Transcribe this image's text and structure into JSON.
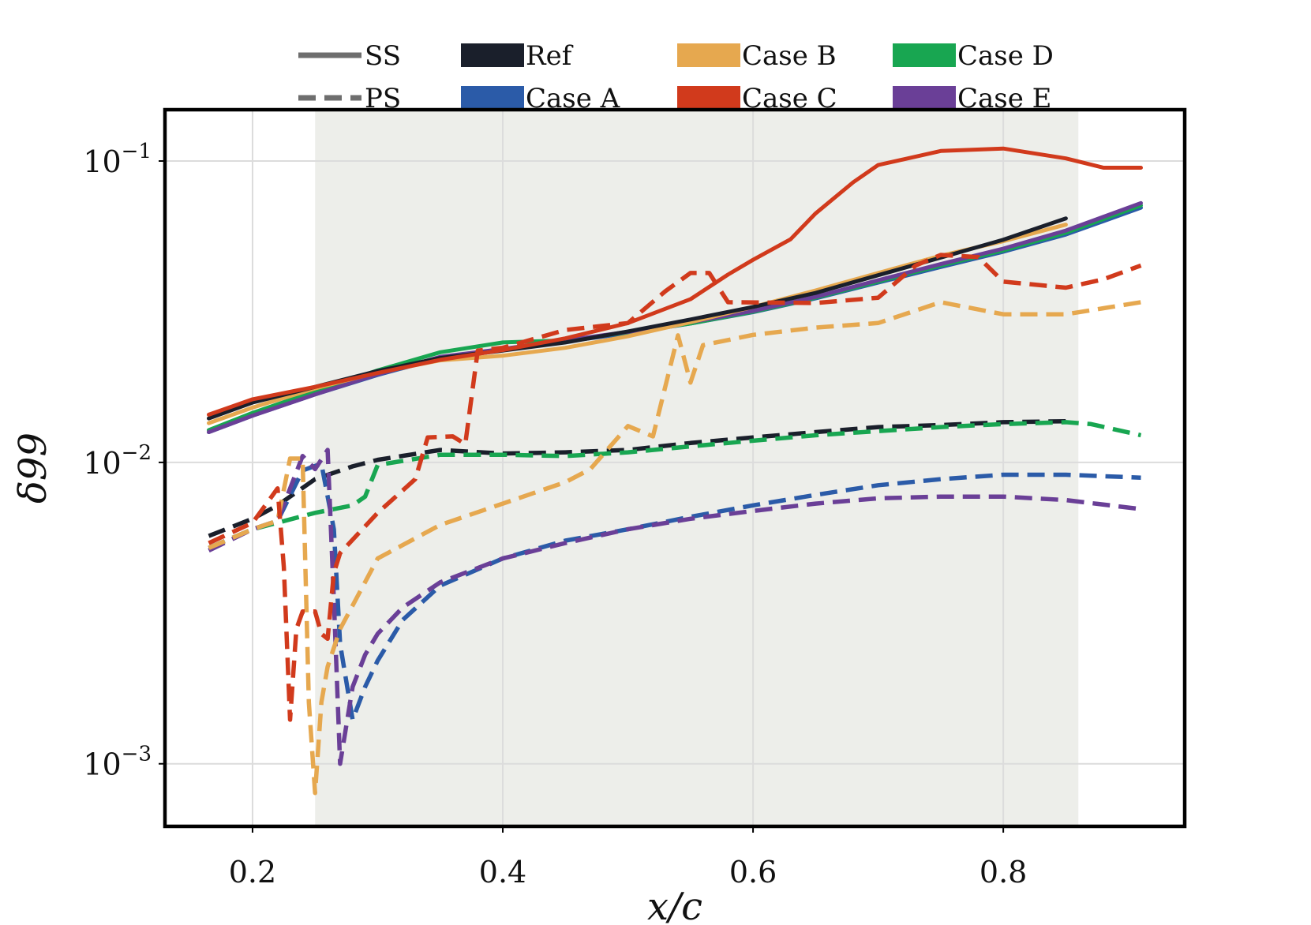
{
  "chart_data": {
    "type": "line",
    "xlabel": "x/c",
    "ylabel": "δ99",
    "yscale": "log",
    "xlim": [
      0.13,
      0.945
    ],
    "ylim": [
      0.00062,
      0.148
    ],
    "xticks": [
      0.2,
      0.4,
      0.6,
      0.8
    ],
    "xtick_labels": [
      "0.2",
      "0.4",
      "0.6",
      "0.8"
    ],
    "yticks": [
      0.001,
      0.01,
      0.1
    ],
    "ytick_labels": [
      {
        "base": "10",
        "exp": "−3"
      },
      {
        "base": "10",
        "exp": "−2"
      },
      {
        "base": "10",
        "exp": "−1"
      }
    ],
    "grid": true,
    "shaded_region": [
      0.25,
      0.86
    ],
    "legend_position": "top",
    "legend": {
      "styles": [
        {
          "label": "SS",
          "dash": "solid"
        },
        {
          "label": "PS",
          "dash": "dashed"
        }
      ],
      "cases": [
        {
          "label": "Ref",
          "color": "#1a1f2b"
        },
        {
          "label": "Case A",
          "color": "#2b5ba8"
        },
        {
          "label": "Case B",
          "color": "#e6a84f"
        },
        {
          "label": "Case C",
          "color": "#d13a1c"
        },
        {
          "label": "Case D",
          "color": "#18a651"
        },
        {
          "label": "Case E",
          "color": "#6a3f97"
        }
      ]
    },
    "series": [
      {
        "case": "Case A",
        "side": "SS",
        "x": [
          0.165,
          0.2,
          0.25,
          0.3,
          0.35,
          0.4,
          0.45,
          0.5,
          0.55,
          0.6,
          0.65,
          0.7,
          0.75,
          0.8,
          0.85,
          0.91
        ],
        "y": [
          0.0126,
          0.0143,
          0.0168,
          0.0195,
          0.0222,
          0.0238,
          0.0252,
          0.0268,
          0.0289,
          0.0315,
          0.035,
          0.0395,
          0.0445,
          0.05,
          0.057,
          0.07
        ]
      },
      {
        "case": "Case D",
        "side": "SS",
        "x": [
          0.165,
          0.2,
          0.25,
          0.3,
          0.35,
          0.4,
          0.45,
          0.5,
          0.55,
          0.6,
          0.65,
          0.7,
          0.75,
          0.8,
          0.85,
          0.91
        ],
        "y": [
          0.0128,
          0.0146,
          0.0172,
          0.0202,
          0.0232,
          0.025,
          0.0254,
          0.027,
          0.0289,
          0.0316,
          0.0352,
          0.0398,
          0.045,
          0.0505,
          0.0578,
          0.0712
        ]
      },
      {
        "case": "Case E",
        "side": "SS",
        "x": [
          0.165,
          0.2,
          0.25,
          0.3,
          0.35,
          0.4,
          0.45,
          0.5,
          0.55,
          0.6,
          0.65,
          0.7,
          0.75,
          0.8,
          0.85,
          0.91
        ],
        "y": [
          0.0126,
          0.0143,
          0.0168,
          0.0196,
          0.0224,
          0.0238,
          0.0254,
          0.0271,
          0.0292,
          0.0318,
          0.0354,
          0.0402,
          0.0455,
          0.0512,
          0.0588,
          0.0725
        ]
      },
      {
        "case": "Case B",
        "side": "SS",
        "x": [
          0.165,
          0.2,
          0.25,
          0.3,
          0.35,
          0.4,
          0.45,
          0.5,
          0.55,
          0.6,
          0.65,
          0.7,
          0.75,
          0.8,
          0.85
        ],
        "y": [
          0.0135,
          0.0152,
          0.0176,
          0.0199,
          0.0218,
          0.0226,
          0.024,
          0.0262,
          0.0292,
          0.0328,
          0.0372,
          0.0425,
          0.0485,
          0.0542,
          0.0615
        ]
      },
      {
        "case": "Ref",
        "side": "SS",
        "x": [
          0.165,
          0.2,
          0.25,
          0.3,
          0.35,
          0.4,
          0.45,
          0.5,
          0.55,
          0.6,
          0.65,
          0.7,
          0.75,
          0.8,
          0.85
        ],
        "y": [
          0.014,
          0.0158,
          0.0178,
          0.0201,
          0.0222,
          0.0235,
          0.025,
          0.0272,
          0.0298,
          0.0328,
          0.0365,
          0.0418,
          0.0478,
          0.0548,
          0.0645
        ]
      },
      {
        "case": "Case C",
        "side": "SS",
        "x": [
          0.165,
          0.2,
          0.25,
          0.3,
          0.35,
          0.4,
          0.45,
          0.5,
          0.55,
          0.58,
          0.6,
          0.63,
          0.65,
          0.68,
          0.7,
          0.75,
          0.8,
          0.85,
          0.88,
          0.91
        ],
        "y": [
          0.0144,
          0.0162,
          0.0178,
          0.0198,
          0.0219,
          0.0236,
          0.0258,
          0.029,
          0.0348,
          0.042,
          0.047,
          0.055,
          0.067,
          0.085,
          0.097,
          0.108,
          0.11,
          0.102,
          0.095,
          0.095
        ]
      },
      {
        "case": "Ref",
        "side": "PS",
        "x": [
          0.165,
          0.2,
          0.22,
          0.25,
          0.28,
          0.3,
          0.35,
          0.4,
          0.45,
          0.5,
          0.55,
          0.6,
          0.65,
          0.7,
          0.75,
          0.8,
          0.85
        ],
        "y": [
          0.0057,
          0.0065,
          0.0072,
          0.0088,
          0.0097,
          0.0102,
          0.011,
          0.0107,
          0.0108,
          0.011,
          0.0116,
          0.0121,
          0.0126,
          0.0131,
          0.0133,
          0.0136,
          0.0137
        ]
      },
      {
        "case": "Case D",
        "side": "PS",
        "x": [
          0.165,
          0.2,
          0.25,
          0.28,
          0.29,
          0.3,
          0.35,
          0.4,
          0.45,
          0.5,
          0.55,
          0.6,
          0.65,
          0.7,
          0.75,
          0.8,
          0.85,
          0.87,
          0.91
        ],
        "y": [
          0.0052,
          0.006,
          0.0068,
          0.0072,
          0.0077,
          0.0098,
          0.0106,
          0.0106,
          0.0105,
          0.0108,
          0.0113,
          0.0118,
          0.0123,
          0.0127,
          0.0131,
          0.0134,
          0.0136,
          0.0134,
          0.0123
        ]
      },
      {
        "case": "Case A",
        "side": "PS",
        "x": [
          0.165,
          0.2,
          0.22,
          0.24,
          0.255,
          0.265,
          0.27,
          0.28,
          0.29,
          0.3,
          0.32,
          0.35,
          0.4,
          0.45,
          0.5,
          0.55,
          0.6,
          0.65,
          0.7,
          0.75,
          0.8,
          0.85,
          0.91
        ],
        "y": [
          0.0052,
          0.006,
          0.0064,
          0.0094,
          0.0099,
          0.006,
          0.0025,
          0.0014,
          0.0018,
          0.0022,
          0.003,
          0.0039,
          0.0048,
          0.0055,
          0.006,
          0.0066,
          0.0072,
          0.0078,
          0.0084,
          0.0088,
          0.0091,
          0.0091,
          0.0089
        ]
      },
      {
        "case": "Case E",
        "side": "PS",
        "x": [
          0.165,
          0.2,
          0.22,
          0.24,
          0.25,
          0.26,
          0.265,
          0.27,
          0.28,
          0.29,
          0.3,
          0.32,
          0.35,
          0.4,
          0.45,
          0.5,
          0.55,
          0.6,
          0.65,
          0.7,
          0.75,
          0.8,
          0.85,
          0.91
        ],
        "y": [
          0.0051,
          0.006,
          0.0064,
          0.0105,
          0.0095,
          0.011,
          0.0035,
          0.001,
          0.0018,
          0.0023,
          0.0027,
          0.0033,
          0.004,
          0.0048,
          0.0054,
          0.006,
          0.0065,
          0.0069,
          0.0073,
          0.0076,
          0.0077,
          0.0077,
          0.0075,
          0.007
        ]
      },
      {
        "case": "Case B",
        "side": "PS",
        "x": [
          0.165,
          0.2,
          0.22,
          0.23,
          0.24,
          0.245,
          0.25,
          0.255,
          0.26,
          0.27,
          0.3,
          0.35,
          0.4,
          0.45,
          0.47,
          0.5,
          0.52,
          0.54,
          0.55,
          0.56,
          0.6,
          0.65,
          0.7,
          0.75,
          0.8,
          0.85,
          0.91
        ],
        "y": [
          0.0052,
          0.006,
          0.0064,
          0.0103,
          0.0103,
          0.0016,
          0.0008,
          0.0016,
          0.0021,
          0.0028,
          0.0048,
          0.0062,
          0.0073,
          0.0086,
          0.0095,
          0.0132,
          0.0122,
          0.0264,
          0.0184,
          0.0245,
          0.0265,
          0.028,
          0.029,
          0.034,
          0.031,
          0.031,
          0.034
        ]
      },
      {
        "case": "Case C",
        "side": "PS",
        "x": [
          0.165,
          0.2,
          0.22,
          0.225,
          0.23,
          0.235,
          0.24,
          0.25,
          0.255,
          0.26,
          0.265,
          0.27,
          0.3,
          0.33,
          0.34,
          0.36,
          0.37,
          0.38,
          0.4,
          0.45,
          0.5,
          0.53,
          0.55,
          0.565,
          0.58,
          0.65,
          0.7,
          0.73,
          0.75,
          0.78,
          0.8,
          0.85,
          0.88,
          0.91
        ],
        "y": [
          0.0054,
          0.0063,
          0.0082,
          0.0045,
          0.0014,
          0.0028,
          0.0032,
          0.0032,
          0.0027,
          0.0026,
          0.0043,
          0.005,
          0.0068,
          0.0088,
          0.0121,
          0.0122,
          0.0115,
          0.0235,
          0.024,
          0.0275,
          0.029,
          0.037,
          0.0425,
          0.0425,
          0.034,
          0.0338,
          0.0352,
          0.045,
          0.0488,
          0.048,
          0.0398,
          0.038,
          0.0405,
          0.045
        ]
      }
    ]
  }
}
